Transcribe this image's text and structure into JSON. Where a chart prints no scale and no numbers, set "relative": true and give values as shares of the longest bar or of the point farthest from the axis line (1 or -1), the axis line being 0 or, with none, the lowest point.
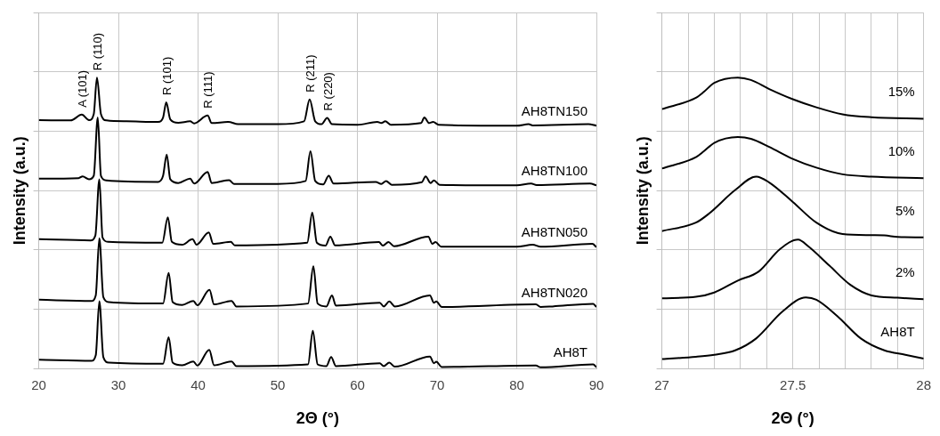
{
  "chart_data": [
    {
      "type": "line",
      "relative": true,
      "xlabel": "2Θ (°)",
      "ylabel": "Intensity (a.u.)",
      "xlim": [
        20,
        90
      ],
      "xticks": [
        20,
        30,
        40,
        50,
        60,
        70,
        80,
        90
      ],
      "grid": true,
      "marker": "none",
      "line_style": "solid",
      "annotations": [
        {
          "text": "A (101)",
          "x": 25.4,
          "y": 0.873
        },
        {
          "text": "R (110)",
          "x": 27.3,
          "y": 1.0
        },
        {
          "text": "R (101)",
          "x": 36.0,
          "y": 0.915
        },
        {
          "text": "R (111)",
          "x": 41.2,
          "y": 0.87
        },
        {
          "text": "R (211)",
          "x": 54.0,
          "y": 0.925
        },
        {
          "text": "R (220)",
          "x": 56.2,
          "y": 0.862
        }
      ],
      "series": [
        {
          "name": "AH8TN150",
          "color": "#000000",
          "x": [
            20,
            24,
            25.4,
            26.3,
            26.9,
            27.3,
            27.8,
            28.5,
            31,
            35,
            35.6,
            36.0,
            36.5,
            37.5,
            39,
            39.5,
            41.2,
            41.7,
            43.8,
            45,
            50,
            53.3,
            54.0,
            54.7,
            55.5,
            56.2,
            56.8,
            60,
            62.5,
            63.0,
            63.5,
            64.2,
            68.0,
            68.4,
            69.0,
            69.5,
            70.2,
            80,
            81.5,
            82,
            89,
            90
          ],
          "values": [
            0.854,
            0.853,
            0.873,
            0.854,
            0.875,
            1.0,
            0.875,
            0.853,
            0.85,
            0.848,
            0.863,
            0.915,
            0.857,
            0.845,
            0.85,
            0.843,
            0.87,
            0.844,
            0.848,
            0.84,
            0.84,
            0.85,
            0.925,
            0.85,
            0.84,
            0.862,
            0.84,
            0.838,
            0.848,
            0.844,
            0.85,
            0.838,
            0.844,
            0.863,
            0.844,
            0.848,
            0.838,
            0.835,
            0.84,
            0.836,
            0.84,
            0.835
          ]
        },
        {
          "name": "AH8TN100",
          "color": "#000000",
          "x": [
            20,
            25,
            25.5,
            26.3,
            26.9,
            27.4,
            27.8,
            28.5,
            35,
            35.6,
            36.06,
            36.5,
            37.5,
            39.0,
            39.5,
            41.2,
            41.7,
            43.9,
            44.5,
            50,
            53.5,
            54.1,
            54.7,
            55.7,
            56.4,
            57,
            62.3,
            63,
            63.6,
            64.3,
            68.1,
            68.55,
            69.2,
            69.6,
            70.3,
            80,
            81.8,
            82.5,
            89.2,
            90
          ],
          "values": [
            0.653,
            0.655,
            0.661,
            0.651,
            0.663,
            0.863,
            0.663,
            0.647,
            0.642,
            0.663,
            0.736,
            0.651,
            0.638,
            0.653,
            0.636,
            0.676,
            0.638,
            0.648,
            0.635,
            0.635,
            0.645,
            0.747,
            0.645,
            0.633,
            0.663,
            0.636,
            0.642,
            0.635,
            0.645,
            0.632,
            0.641,
            0.661,
            0.638,
            0.647,
            0.632,
            0.63,
            0.636,
            0.631,
            0.636,
            0.63
          ]
        },
        {
          "name": "AH8TN050",
          "color": "#000000",
          "x": [
            20,
            26.5,
            27.1,
            27.6,
            28.0,
            28.7,
            35.5,
            36.2,
            36.7,
            38,
            39.3,
            39.8,
            41.34,
            41.9,
            44.1,
            44.6,
            53.7,
            54.33,
            54.9,
            56.0,
            56.6,
            57.2,
            62.7,
            63.2,
            63.9,
            64.6,
            68.9,
            69.4,
            69.8,
            70.5,
            80,
            82,
            83,
            89.5,
            90
          ],
          "values": [
            0.445,
            0.441,
            0.458,
            0.651,
            0.451,
            0.436,
            0.433,
            0.52,
            0.436,
            0.426,
            0.445,
            0.426,
            0.468,
            0.429,
            0.436,
            0.424,
            0.433,
            0.536,
            0.433,
            0.423,
            0.454,
            0.424,
            0.435,
            0.423,
            0.435,
            0.421,
            0.454,
            0.429,
            0.435,
            0.419,
            0.419,
            0.426,
            0.419,
            0.429,
            0.418
          ]
        },
        {
          "name": "AH8TN020",
          "color": "#000000",
          "x": [
            20,
            26.6,
            27.15,
            27.6,
            28.1,
            28.8,
            35.6,
            36.3,
            36.8,
            38,
            39.4,
            39.9,
            41.43,
            42.0,
            44.2,
            44.8,
            53.8,
            54.47,
            55.0,
            56.1,
            56.8,
            57.3,
            62.8,
            63.3,
            64.0,
            64.7,
            69.1,
            69.6,
            69.9,
            70.6,
            82.4,
            83,
            84.5,
            89.6,
            90
          ],
          "values": [
            0.237,
            0.233,
            0.252,
            0.448,
            0.246,
            0.229,
            0.224,
            0.329,
            0.229,
            0.219,
            0.233,
            0.218,
            0.271,
            0.221,
            0.233,
            0.214,
            0.224,
            0.352,
            0.224,
            0.214,
            0.252,
            0.217,
            0.227,
            0.214,
            0.231,
            0.214,
            0.252,
            0.227,
            0.231,
            0.212,
            0.221,
            0.212,
            0.214,
            0.223,
            0.212
          ]
        },
        {
          "name": "AH8T",
          "color": "#000000",
          "x": [
            20,
            26.6,
            27.15,
            27.6,
            28.1,
            28.8,
            35.6,
            36.3,
            36.8,
            38,
            39.4,
            39.9,
            41.4,
            42.0,
            44.2,
            44.8,
            53.8,
            54.4,
            55.0,
            56.1,
            56.7,
            57.3,
            62.8,
            63.3,
            64.0,
            64.7,
            69.1,
            69.6,
            69.9,
            70.6,
            82.4,
            83,
            89.6,
            90
          ],
          "values": [
            0.031,
            0.027,
            0.046,
            0.232,
            0.04,
            0.021,
            0.017,
            0.108,
            0.021,
            0.012,
            0.025,
            0.011,
            0.065,
            0.012,
            0.025,
            0.009,
            0.015,
            0.13,
            0.015,
            0.009,
            0.04,
            0.009,
            0.019,
            0.009,
            0.021,
            0.007,
            0.042,
            0.019,
            0.024,
            0.006,
            0.011,
            0.005,
            0.015,
            0.005
          ]
        }
      ]
    },
    {
      "type": "line",
      "relative": true,
      "xlabel": "2Θ (°)",
      "ylabel": "Intensity (a.u.)",
      "xlim": [
        27,
        28
      ],
      "xticks": [
        27,
        {
          "value": 27.1,
          "label": null
        },
        {
          "value": 27.2,
          "label": null
        },
        {
          "value": 27.3,
          "label": null
        },
        {
          "value": 27.4,
          "label": null
        },
        27.5,
        {
          "value": 27.6,
          "label": null
        },
        {
          "value": 27.7,
          "label": null
        },
        {
          "value": 27.8,
          "label": null
        },
        {
          "value": 27.9,
          "label": null
        },
        28
      ],
      "grid": true,
      "marker": "none",
      "line_style": "solid",
      "series": [
        {
          "name": "15%",
          "color": "#000000",
          "x": [
            27.0,
            27.13,
            27.16,
            27.2,
            27.29,
            27.34,
            27.41,
            27.5,
            27.59,
            27.69,
            27.8,
            28.0
          ],
          "values": [
            0.892,
            0.931,
            0.951,
            0.982,
            1.0,
            0.992,
            0.961,
            0.926,
            0.898,
            0.874,
            0.864,
            0.859
          ]
        },
        {
          "name": "10%",
          "color": "#000000",
          "x": [
            27.0,
            27.13,
            27.16,
            27.2,
            27.29,
            27.34,
            27.41,
            27.5,
            27.59,
            27.69,
            27.8,
            28.0
          ],
          "values": [
            0.688,
            0.727,
            0.747,
            0.776,
            0.796,
            0.79,
            0.762,
            0.721,
            0.691,
            0.668,
            0.66,
            0.655
          ]
        },
        {
          "name": "5%",
          "color": "#000000",
          "x": [
            27.0,
            27.13,
            27.18,
            27.28,
            27.36,
            27.41,
            27.5,
            27.59,
            27.69,
            27.8,
            27.85,
            27.9,
            28.0
          ],
          "values": [
            0.473,
            0.502,
            0.533,
            0.614,
            0.66,
            0.64,
            0.573,
            0.502,
            0.463,
            0.459,
            0.458,
            0.453,
            0.451
          ]
        },
        {
          "name": "2%",
          "color": "#000000",
          "x": [
            27.0,
            27.13,
            27.2,
            27.29,
            27.37,
            27.45,
            27.52,
            27.56,
            27.64,
            27.72,
            27.8,
            27.9,
            28.0
          ],
          "values": [
            0.242,
            0.247,
            0.262,
            0.303,
            0.334,
            0.41,
            0.444,
            0.42,
            0.354,
            0.288,
            0.252,
            0.244,
            0.239
          ]
        },
        {
          "name": "AH8T",
          "color": "#000000",
          "x": [
            27.0,
            27.13,
            27.2,
            27.28,
            27.36,
            27.46,
            27.55,
            27.59,
            27.67,
            27.76,
            27.85,
            27.93,
            28.0
          ],
          "values": [
            0.033,
            0.041,
            0.048,
            0.063,
            0.104,
            0.196,
            0.245,
            0.237,
            0.181,
            0.104,
            0.063,
            0.048,
            0.035
          ]
        }
      ]
    }
  ]
}
